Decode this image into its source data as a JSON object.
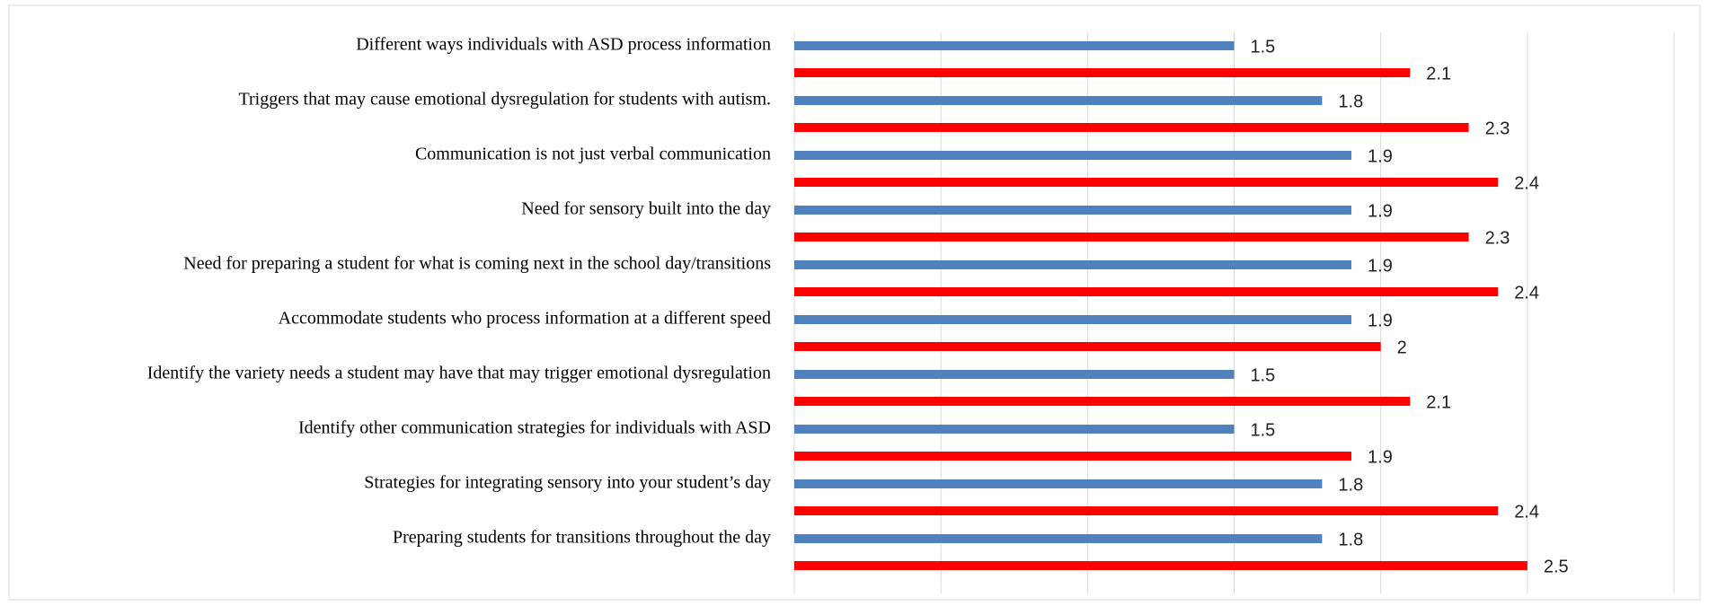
{
  "chart_data": {
    "type": "bar",
    "orientation": "horizontal",
    "categories": [
      "Different ways individuals with ASD process information",
      "Triggers that may cause emotional dysregulation for students with autism.",
      "Communication is not just verbal communication",
      "Need for sensory built into the day",
      "Need for preparing a student for what is coming next in the school day/transitions",
      "Accommodate students who process information at a different speed",
      "Identify the variety needs a student may have that may trigger emotional dysregulation",
      "Identify other communication strategies for individuals with ASD",
      "Strategies for integrating sensory into your student’s day",
      "Preparing students for transitions throughout the day"
    ],
    "series": [
      {
        "color": "#4f81bd",
        "values": [
          1.5,
          1.8,
          1.9,
          1.9,
          1.9,
          1.9,
          1.5,
          1.5,
          1.8,
          1.8
        ]
      },
      {
        "color": "#ff0000",
        "values": [
          2.1,
          2.3,
          2.4,
          2.3,
          2.4,
          2,
          2.1,
          1.9,
          2.4,
          2.5
        ]
      }
    ],
    "xlim": [
      0,
      3
    ],
    "xticks": [
      0,
      0.5,
      1,
      1.5,
      2,
      2.5,
      3
    ],
    "grid": true
  }
}
